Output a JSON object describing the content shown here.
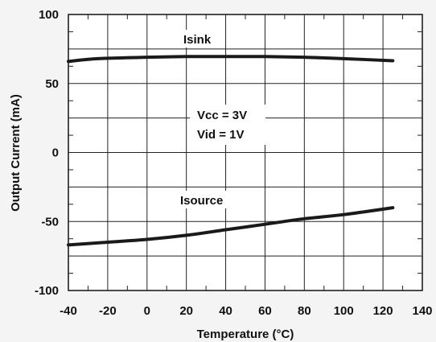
{
  "chart_data": {
    "type": "line",
    "xlabel": "Temperature (°C)",
    "ylabel": "Output Current (mA)",
    "xlim": [
      -40,
      140
    ],
    "ylim": [
      -100,
      100
    ],
    "x_ticks": [
      -40,
      -20,
      0,
      20,
      40,
      60,
      80,
      100,
      120,
      140
    ],
    "y_ticks": [
      100,
      50,
      0,
      -50,
      -100
    ],
    "grid": true,
    "annotations": [
      "Vcc = 3V",
      "Vid = 1V"
    ],
    "series": [
      {
        "name": "Isink",
        "x": [
          -40,
          -25,
          0,
          20,
          40,
          60,
          80,
          100,
          125
        ],
        "y": [
          66,
          68,
          69,
          69.5,
          69.5,
          69.5,
          69,
          68,
          66.5
        ]
      },
      {
        "name": "Isource",
        "x": [
          -40,
          -20,
          0,
          20,
          40,
          60,
          80,
          100,
          125
        ],
        "y": [
          -67,
          -65,
          -63,
          -60,
          -56,
          -52,
          -48,
          -45,
          -40
        ]
      }
    ]
  }
}
